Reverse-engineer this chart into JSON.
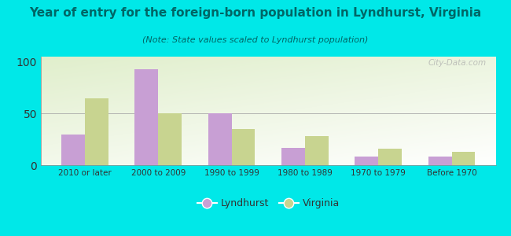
{
  "categories": [
    "2010 or later",
    "2000 to 2009",
    "1990 to 1999",
    "1980 to 1989",
    "1970 to 1979",
    "Before 1970"
  ],
  "lyndhurst_values": [
    30,
    93,
    50,
    17,
    8,
    8
  ],
  "virginia_values": [
    65,
    50,
    35,
    28,
    16,
    13
  ],
  "lyndhurst_color": "#c89fd4",
  "virginia_color": "#c8d490",
  "title": "Year of entry for the foreign-born population in Lyndhurst, Virginia",
  "subtitle": "(Note: State values scaled to Lyndhurst population)",
  "title_fontsize": 11,
  "subtitle_fontsize": 8,
  "ylabel_ticks": [
    0,
    50,
    100
  ],
  "ylim": [
    0,
    105
  ],
  "background_outer": "#00e8e8",
  "background_inner_topleft": "#d8ecc0",
  "background_inner_bottom": "#ffffff",
  "title_color": "#006666",
  "subtitle_color": "#006666",
  "legend_lyndhurst": "Lyndhurst",
  "legend_virginia": "Virginia",
  "watermark": "City-Data.com",
  "bar_width": 0.32
}
